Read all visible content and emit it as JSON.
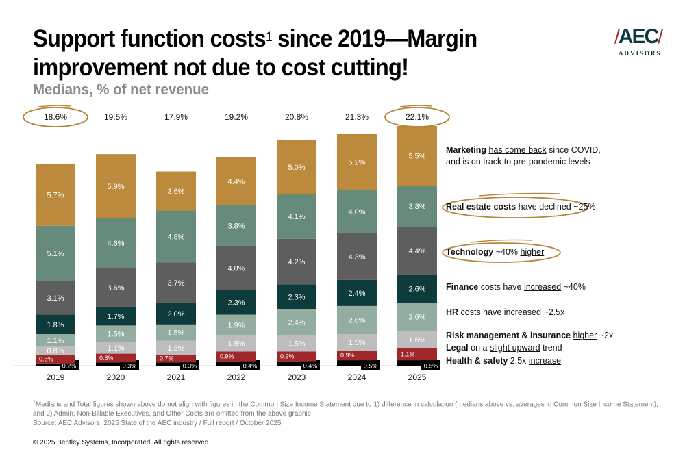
{
  "header": {
    "title_line1_part1": "Support function costs",
    "title_footnote_mark": "1",
    "title_line1_part2": " since 2019—Margin",
    "title_line2": "improvement not due to cost cutting!",
    "subtitle": "Medians, % of net revenue"
  },
  "logo": {
    "mark": "AEC",
    "sub": "ADVISORS"
  },
  "colors": {
    "marketing": "#bb8a3c",
    "real_estate": "#678b7b",
    "technology": "#5e5e5e",
    "finance": "#0d3a3a",
    "hr": "#93ada0",
    "risk": "#bdbdbd",
    "legal": "#a0282b",
    "health_safety": "#000000",
    "highlight": "#b8863a"
  },
  "chart_data": {
    "type": "bar",
    "stacked": true,
    "title": "Support function costs since 2019",
    "ylabel": "% of net revenue (medians)",
    "categories": [
      "2019",
      "2020",
      "2021",
      "2022",
      "2023",
      "2024",
      "2025"
    ],
    "totals": [
      "18.6%",
      "19.5%",
      "17.9%",
      "19.2%",
      "20.8%",
      "21.3%",
      "22.1%"
    ],
    "highlighted_totals": [
      "2019",
      "2025"
    ],
    "series": [
      {
        "name": "Health & safety",
        "key": "health_safety",
        "values": [
          0.2,
          0.3,
          0.3,
          0.4,
          0.4,
          0.5,
          0.5
        ]
      },
      {
        "name": "Legal",
        "key": "legal",
        "values": [
          0.8,
          0.8,
          0.7,
          0.9,
          0.9,
          0.9,
          1.1
        ]
      },
      {
        "name": "Risk management & insurance",
        "key": "risk",
        "values": [
          0.8,
          1.1,
          1.3,
          1.5,
          1.5,
          1.5,
          1.6
        ]
      },
      {
        "name": "HR",
        "key": "hr",
        "values": [
          1.1,
          1.5,
          1.5,
          1.9,
          2.4,
          2.6,
          2.6
        ]
      },
      {
        "name": "Finance",
        "key": "finance",
        "values": [
          1.8,
          1.7,
          2.0,
          2.3,
          2.3,
          2.4,
          2.6
        ]
      },
      {
        "name": "Technology",
        "key": "technology",
        "values": [
          3.1,
          3.6,
          3.7,
          4.0,
          4.2,
          4.3,
          4.4
        ]
      },
      {
        "name": "Real estate",
        "key": "real_estate",
        "values": [
          5.1,
          4.6,
          4.8,
          3.8,
          4.1,
          4.0,
          3.8
        ]
      },
      {
        "name": "Marketing",
        "key": "marketing",
        "values": [
          5.7,
          5.9,
          3.6,
          4.4,
          5.0,
          5.2,
          5.5
        ]
      }
    ],
    "legend": "none (annotations at right)"
  },
  "annotations": {
    "marketing": {
      "bold": "Marketing",
      "pre": " ",
      "u": "has come back",
      "post": " since COVID,",
      "line2": "and is on track to pre-pandemic levels"
    },
    "real_estate": {
      "bold": "Real estate costs",
      "pre": " have declined ~25%",
      "u": "",
      "post": ""
    },
    "technology": {
      "bold": "Technology",
      "pre": " ~40% ",
      "u": "higher",
      "post": ""
    },
    "finance": {
      "bold": "Finance",
      "pre": " costs have ",
      "u": "increased",
      "post": " ~40%"
    },
    "hr": {
      "bold": "HR",
      "pre": " costs have ",
      "u": "increased",
      "post": " ~2.5x"
    },
    "risk": {
      "bold": "Risk management & insurance",
      "pre": " ",
      "u": "higher",
      "post": " ~2x"
    },
    "legal": {
      "bold": "Legal",
      "pre": " on a ",
      "u": "slight upward",
      "post": " trend"
    },
    "health_safety": {
      "bold": "Health & safety",
      "pre": " 2.5x ",
      "u": "increase",
      "post": ""
    }
  },
  "footer": {
    "note_mark": "1",
    "note_line1": "Medians and Total figures shown above do not align with figures in the Common Size Income Statement due to 1) difference in calculation (medians above vs. averages in Common Size Income Statement),",
    "note_line2": "and 2) Admin, Non-Billable Executives, and Other Costs are omitted from the above graphic",
    "source": "Source: AEC Advisors; 2025 State of the AEC industry / Full report / October 2025",
    "copyright": "© 2025 Bentley Systems, Incorporated. All rights reserved."
  }
}
